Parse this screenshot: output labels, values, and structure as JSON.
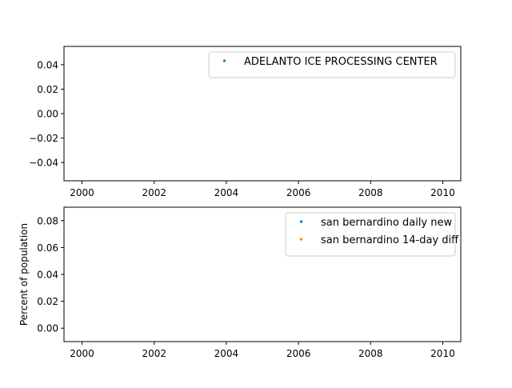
{
  "chart_data": [
    {
      "type": "scatter",
      "title": "",
      "xlabel": "",
      "ylabel": "",
      "xlim": [
        1999.5,
        2010.5
      ],
      "ylim": [
        -0.055,
        0.055
      ],
      "xticks": [
        2000,
        2002,
        2004,
        2006,
        2008,
        2010
      ],
      "xtick_labels": [
        "2000",
        "2002",
        "2004",
        "2006",
        "2008",
        "2010"
      ],
      "yticks": [
        -0.04,
        -0.02,
        0.0,
        0.02,
        0.04
      ],
      "ytick_labels": [
        "−0.04",
        "−0.02",
        "0.00",
        "0.02",
        "0.04"
      ],
      "legend_position": "top-right",
      "series": [
        {
          "name": "ADELANTO ICE PROCESSING CENTER",
          "color": "#1f77b4",
          "x": [],
          "y": []
        }
      ]
    },
    {
      "type": "scatter",
      "title": "",
      "xlabel": "",
      "ylabel": "Percent of population",
      "xlim": [
        1999.5,
        2010.5
      ],
      "ylim": [
        -0.01,
        0.09
      ],
      "xticks": [
        2000,
        2002,
        2004,
        2006,
        2008,
        2010
      ],
      "xtick_labels": [
        "2000",
        "2002",
        "2004",
        "2006",
        "2008",
        "2010"
      ],
      "yticks": [
        0.0,
        0.02,
        0.04,
        0.06,
        0.08
      ],
      "ytick_labels": [
        "0.00",
        "0.02",
        "0.04",
        "0.06",
        "0.08"
      ],
      "legend_position": "top-right",
      "series": [
        {
          "name": "san bernardino daily new",
          "color": "#1f77b4",
          "x": [],
          "y": []
        },
        {
          "name": "san bernardino 14-day diff",
          "color": "#ff7f0e",
          "x": [],
          "y": []
        }
      ]
    }
  ]
}
